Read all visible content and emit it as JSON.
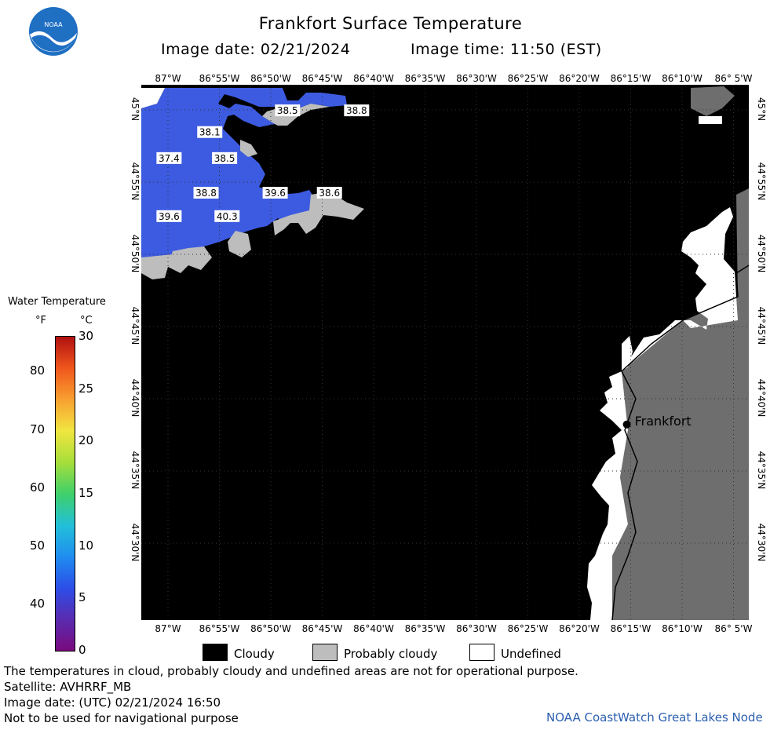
{
  "header": {
    "title": "Frankfort Surface Temperature",
    "image_date_label": "Image date: 02/21/2024",
    "image_time_label": "Image time: 11:50 (EST)"
  },
  "logo": {
    "text": "NOAA"
  },
  "longitudes": [
    "87°W",
    "86°55'W",
    "86°50'W",
    "86°45'W",
    "86°40'W",
    "86°35'W",
    "86°30'W",
    "86°25'W",
    "86°20'W",
    "86°15'W",
    "86°10'W",
    "86° 5'W"
  ],
  "latitudes": [
    "45°N",
    "44°55'N",
    "44°50'N",
    "44°45'N",
    "44°40'N",
    "44°35'N",
    "44°30'N"
  ],
  "temperatures": [
    {
      "value": "38.5",
      "lon": -86.788,
      "lat": 44.995
    },
    {
      "value": "38.8",
      "lon": -86.676,
      "lat": 44.995
    },
    {
      "value": "38.1",
      "lon": -86.914,
      "lat": 44.97
    },
    {
      "value": "37.4",
      "lon": -86.98,
      "lat": 44.94
    },
    {
      "value": "38.5",
      "lon": -86.89,
      "lat": 44.94
    },
    {
      "value": "38.8",
      "lon": -86.92,
      "lat": 44.9
    },
    {
      "value": "39.6",
      "lon": -86.808,
      "lat": 44.9
    },
    {
      "value": "38.6",
      "lon": -86.72,
      "lat": 44.9
    },
    {
      "value": "39.6",
      "lon": -86.98,
      "lat": 44.873
    },
    {
      "value": "40.3",
      "lon": -86.886,
      "lat": 44.873
    }
  ],
  "place": {
    "name": "Frankfort",
    "lon": -86.238,
    "lat": 44.633
  },
  "colorbar": {
    "title": "Water Temperature",
    "unit_f": "°F",
    "unit_c": "°C",
    "fahrenheit_ticks": [
      "80",
      "70",
      "60",
      "50",
      "40"
    ],
    "celsius_ticks": [
      "30",
      "25",
      "20",
      "15",
      "10",
      "5",
      "0"
    ],
    "colors": [
      "#7a0a7e",
      "#5a2bb0",
      "#2c4ee8",
      "#1f8ef0",
      "#22c0d8",
      "#3fd06a",
      "#a6de3a",
      "#f1e640",
      "#f9a030",
      "#f0561c",
      "#b01010"
    ]
  },
  "legend": {
    "cloudy": "Cloudy",
    "probably_cloudy": "Probably cloudy",
    "undefined": "Undefined",
    "colors": {
      "cloudy": "#000000",
      "probably_cloudy": "#bdbdbd",
      "undefined": "#ffffff",
      "land": "#6e6e6e",
      "water": "#3c5be0"
    }
  },
  "footer": {
    "line1": "The temperatures in cloud, probably cloudy and undefined areas are not for operational purpose.",
    "line2": "Satellite: AVHRRF_MB",
    "line3": "Image date: (UTC) 02/21/2024  16:50",
    "line4": "Not to be used for navigational purpose",
    "credit": "NOAA CoastWatch Great Lakes Node"
  }
}
